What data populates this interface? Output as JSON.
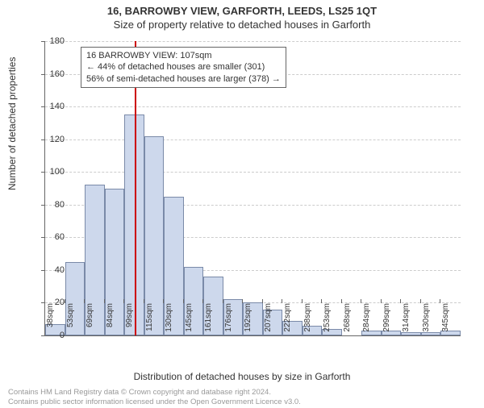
{
  "title_line1": "16, BARROWBY VIEW, GARFORTH, LEEDS, LS25 1QT",
  "title_line2": "Size of property relative to detached houses in Garforth",
  "annotation": {
    "line1": "16 BARROWBY VIEW: 107sqm",
    "line2": "← 44% of detached houses are smaller (301)",
    "line3": "56% of semi-detached houses are larger (378) →"
  },
  "chart": {
    "type": "histogram",
    "y_label": "Number of detached properties",
    "x_label": "Distribution of detached houses by size in Garforth",
    "ylim": [
      0,
      180
    ],
    "ytick_step": 20,
    "bar_fill": "#cdd8ec",
    "bar_border": "#7a8aa8",
    "ref_line_color": "#cc0000",
    "ref_line_x": 107,
    "grid_color": "#cccccc",
    "x_categories": [
      "38sqm",
      "53sqm",
      "69sqm",
      "84sqm",
      "99sqm",
      "115sqm",
      "130sqm",
      "145sqm",
      "161sqm",
      "176sqm",
      "192sqm",
      "207sqm",
      "222sqm",
      "238sqm",
      "253sqm",
      "268sqm",
      "284sqm",
      "299sqm",
      "314sqm",
      "330sqm",
      "345sqm"
    ],
    "values": [
      7,
      45,
      92,
      90,
      135,
      122,
      85,
      42,
      36,
      22,
      20,
      16,
      9,
      6,
      4,
      0,
      3,
      3,
      2,
      2,
      3
    ],
    "x_step": 15.3,
    "x_start": 38
  },
  "footer": {
    "line1": "Contains HM Land Registry data © Crown copyright and database right 2024.",
    "line2": "Contains public sector information licensed under the Open Government Licence v3.0."
  }
}
